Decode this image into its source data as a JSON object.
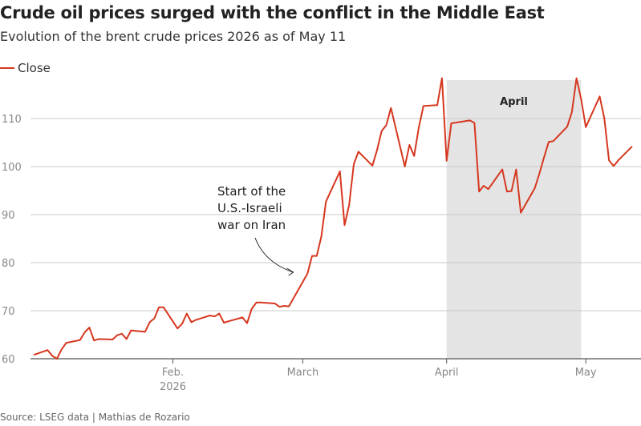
{
  "header": {
    "title": "Crude oil prices surged with the conflict in the Middle East",
    "subtitle": "Evolution of the brent crude prices 2026 as of May 11"
  },
  "footer": {
    "source": "Source: LSEG data | Mathias de Rozario"
  },
  "colors": {
    "line": "#d6371f",
    "band": "#e4e4e4",
    "grid": "#c8c8c8",
    "axis": "#555555"
  },
  "chart_data": {
    "type": "line",
    "title": "Crude oil prices surged with the conflict in the Middle East",
    "subtitle": "Evolution of the brent crude prices 2026 as of May 11",
    "xlabel": "",
    "ylabel": "",
    "ylim": [
      60,
      118
    ],
    "yticks": [
      60,
      70,
      80,
      90,
      100,
      110
    ],
    "x_range": [
      "2026-01-02",
      "2026-05-11"
    ],
    "x_ticks": [
      {
        "date": "2026-02-01",
        "label": [
          "Feb.",
          "2026"
        ]
      },
      {
        "date": "2026-03-01",
        "label": [
          "March"
        ]
      },
      {
        "date": "2026-04-01",
        "label": [
          "April"
        ]
      },
      {
        "date": "2026-05-01",
        "label": [
          "May"
        ]
      }
    ],
    "grid": true,
    "legend": "top-left",
    "shaded_period": {
      "label": "April",
      "start": "2026-04-01",
      "end": "2026-04-30"
    },
    "annotation": {
      "lines": [
        "Start of the",
        "U.S.-Israeli",
        "war on Iran"
      ],
      "points_to": "2026-02-28"
    },
    "series": [
      {
        "name": "Close",
        "points": [
          [
            "2026-01-02",
            60.8
          ],
          [
            "2026-01-05",
            61.8
          ],
          [
            "2026-01-06",
            60.6
          ],
          [
            "2026-01-07",
            60.0
          ],
          [
            "2026-01-08",
            61.9
          ],
          [
            "2026-01-09",
            63.3
          ],
          [
            "2026-01-12",
            63.9
          ],
          [
            "2026-01-13",
            65.5
          ],
          [
            "2026-01-14",
            66.5
          ],
          [
            "2026-01-15",
            63.8
          ],
          [
            "2026-01-16",
            64.1
          ],
          [
            "2026-01-19",
            64.0
          ],
          [
            "2026-01-20",
            64.9
          ],
          [
            "2026-01-21",
            65.2
          ],
          [
            "2026-01-22",
            64.1
          ],
          [
            "2026-01-23",
            65.9
          ],
          [
            "2026-01-26",
            65.6
          ],
          [
            "2026-01-27",
            67.6
          ],
          [
            "2026-01-28",
            68.4
          ],
          [
            "2026-01-29",
            70.7
          ],
          [
            "2026-01-30",
            70.7
          ],
          [
            "2026-02-02",
            66.3
          ],
          [
            "2026-02-03",
            67.3
          ],
          [
            "2026-02-04",
            69.4
          ],
          [
            "2026-02-05",
            67.6
          ],
          [
            "2026-02-06",
            68.1
          ],
          [
            "2026-02-09",
            69.0
          ],
          [
            "2026-02-10",
            68.8
          ],
          [
            "2026-02-11",
            69.4
          ],
          [
            "2026-02-12",
            67.5
          ],
          [
            "2026-02-13",
            67.8
          ],
          [
            "2026-02-16",
            68.6
          ],
          [
            "2026-02-17",
            67.4
          ],
          [
            "2026-02-18",
            70.4
          ],
          [
            "2026-02-19",
            71.7
          ],
          [
            "2026-02-20",
            71.7
          ],
          [
            "2026-02-23",
            71.5
          ],
          [
            "2026-02-24",
            70.8
          ],
          [
            "2026-02-25",
            71.0
          ],
          [
            "2026-02-26",
            70.9
          ],
          [
            "2026-03-02",
            77.7
          ],
          [
            "2026-03-03",
            81.4
          ],
          [
            "2026-03-04",
            81.4
          ],
          [
            "2026-03-05",
            85.4
          ],
          [
            "2026-03-06",
            92.7
          ],
          [
            "2026-03-09",
            99.0
          ],
          [
            "2026-03-10",
            87.8
          ],
          [
            "2026-03-11",
            92.0
          ],
          [
            "2026-03-12",
            100.5
          ],
          [
            "2026-03-13",
            103.1
          ],
          [
            "2026-03-16",
            100.2
          ],
          [
            "2026-03-17",
            103.4
          ],
          [
            "2026-03-18",
            107.4
          ],
          [
            "2026-03-19",
            108.6
          ],
          [
            "2026-03-20",
            112.2
          ],
          [
            "2026-03-23",
            100.0
          ],
          [
            "2026-03-24",
            104.5
          ],
          [
            "2026-03-25",
            102.2
          ],
          [
            "2026-03-26",
            108.1
          ],
          [
            "2026-03-27",
            112.6
          ],
          [
            "2026-03-30",
            112.8
          ],
          [
            "2026-03-31",
            118.4
          ],
          [
            "2026-04-01",
            101.2
          ],
          [
            "2026-04-02",
            109.0
          ],
          [
            "2026-04-06",
            109.6
          ],
          [
            "2026-04-07",
            109.1
          ],
          [
            "2026-04-08",
            94.8
          ],
          [
            "2026-04-09",
            96.0
          ],
          [
            "2026-04-10",
            95.3
          ],
          [
            "2026-04-13",
            99.4
          ],
          [
            "2026-04-14",
            94.8
          ],
          [
            "2026-04-15",
            94.9
          ],
          [
            "2026-04-16",
            99.4
          ],
          [
            "2026-04-17",
            90.4
          ],
          [
            "2026-04-20",
            95.5
          ],
          [
            "2026-04-21",
            98.5
          ],
          [
            "2026-04-22",
            101.9
          ],
          [
            "2026-04-23",
            105.1
          ],
          [
            "2026-04-24",
            105.3
          ],
          [
            "2026-04-27",
            108.3
          ],
          [
            "2026-04-28",
            111.3
          ],
          [
            "2026-04-29",
            118.4
          ],
          [
            "2026-04-30",
            114.0
          ],
          [
            "2026-05-01",
            108.2
          ],
          [
            "2026-05-04",
            114.6
          ],
          [
            "2026-05-05",
            110.0
          ],
          [
            "2026-05-06",
            101.3
          ],
          [
            "2026-05-07",
            100.1
          ],
          [
            "2026-05-08",
            101.3
          ],
          [
            "2026-05-11",
            104.2
          ]
        ]
      }
    ]
  }
}
